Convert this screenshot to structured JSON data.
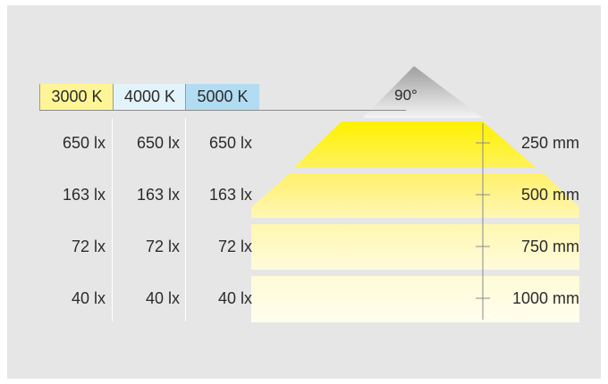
{
  "legend": {
    "items": [
      {
        "label": "3000 K",
        "color": "#fff596"
      },
      {
        "label": "4000 K",
        "color": "#e3f3fb"
      },
      {
        "label": "5000 K",
        "color": "#b2dcf2"
      }
    ]
  },
  "beam": {
    "angle_label": "90°"
  },
  "rows": [
    {
      "lux_3000": "650 lx",
      "lux_4000": "650 lx",
      "lux_5000": "650 lx",
      "distance": "250 mm"
    },
    {
      "lux_3000": "163 lx",
      "lux_4000": "163 lx",
      "lux_5000": "163 lx",
      "distance": "500 mm"
    },
    {
      "lux_3000": "72 lx",
      "lux_4000": "72 lx",
      "lux_5000": "72 lx",
      "distance": "750 mm"
    },
    {
      "lux_3000": "40 lx",
      "lux_4000": "40 lx",
      "lux_5000": "40 lx",
      "distance": "1000 mm"
    }
  ]
}
